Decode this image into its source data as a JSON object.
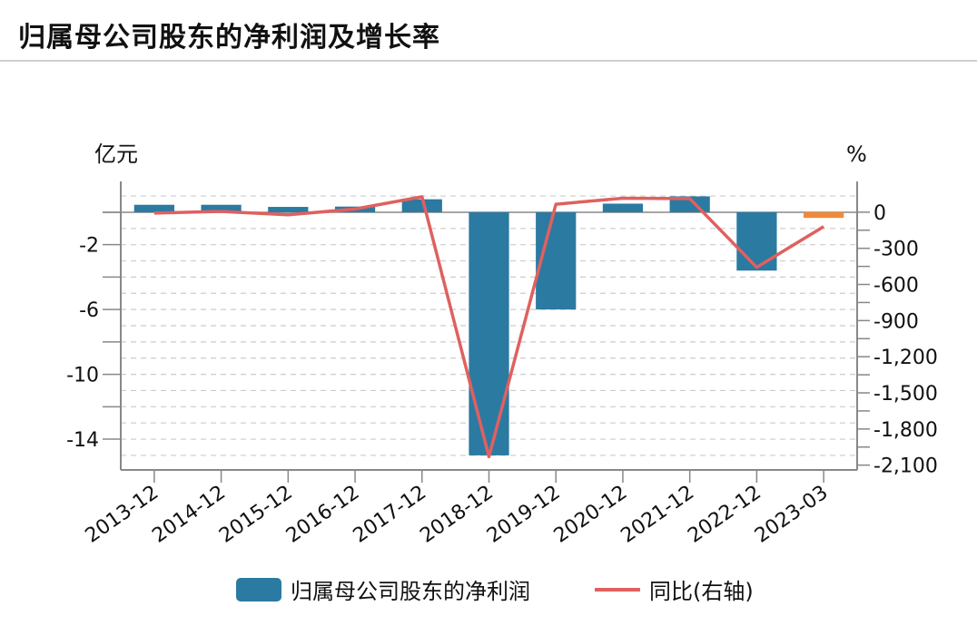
{
  "header": {
    "title": "归属母公司股东的净利润及增长率"
  },
  "chart_data": {
    "type": "bar",
    "categories": [
      "2013-12",
      "2014-12",
      "2015-12",
      "2016-12",
      "2017-12",
      "2018-12",
      "2019-12",
      "2020-12",
      "2021-12",
      "2022-12",
      "2023-03"
    ],
    "y_left_unit": "亿元",
    "y_right_unit": "%",
    "y_left_ticks": [
      "-2",
      "-6",
      "-10",
      "-14"
    ],
    "y_left_tick_values": [
      -2,
      -6,
      -10,
      -14
    ],
    "y_left_lim": [
      -15.9,
      1.9
    ],
    "y_right_ticks": [
      "0",
      "-300",
      "-600",
      "-900",
      "-1,200",
      "-1,500",
      "-1,800",
      "-2,100"
    ],
    "y_right_tick_values": [
      0,
      -300,
      -600,
      -900,
      -1200,
      -1500,
      -1800,
      -2100
    ],
    "y_right_lim": [
      -2140,
      255
    ],
    "grid": true,
    "legend_position": "bottom",
    "series": [
      {
        "name": "归属母公司股东的净利润",
        "type": "bar",
        "axis": "left",
        "color": "#2b7aa1",
        "values": [
          0.46,
          0.46,
          0.33,
          0.35,
          0.8,
          -15.0,
          -6.0,
          0.53,
          0.98,
          -3.6,
          -0.35
        ],
        "highlight_last_color": "#f08a3a"
      },
      {
        "name": "同比(右轴)",
        "type": "line",
        "axis": "right",
        "color": "#e06060",
        "values": [
          -8,
          6,
          -22,
          26,
          128,
          -2030,
          66,
          116,
          113,
          -458,
          -120
        ]
      }
    ]
  }
}
